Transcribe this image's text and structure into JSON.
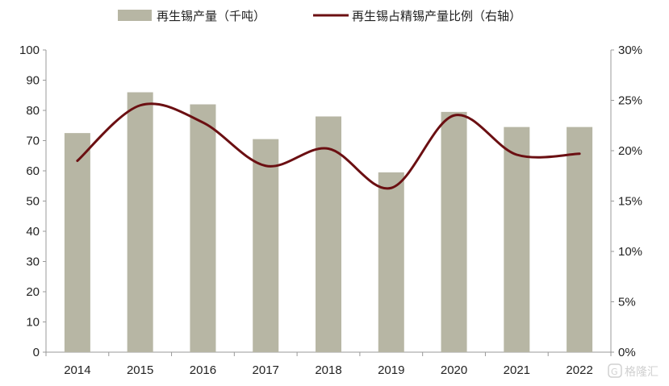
{
  "chart_data": {
    "type": "bar+line",
    "categories": [
      "2014",
      "2015",
      "2016",
      "2017",
      "2018",
      "2019",
      "2020",
      "2021",
      "2022"
    ],
    "series": [
      {
        "name": "再生锡产量（千吨）",
        "kind": "bar",
        "axis": "left",
        "color": "#b7b6a4",
        "values": [
          72.5,
          86,
          82,
          70.5,
          78,
          59.5,
          79.5,
          74.5,
          74.5
        ]
      },
      {
        "name": "再生锡占精锡产量比例（右轴）",
        "kind": "line",
        "axis": "right",
        "color": "#6b0f12",
        "values": [
          19.0,
          24.5,
          22.8,
          18.5,
          20.2,
          16.3,
          23.5,
          19.6,
          19.7
        ]
      }
    ],
    "y_left": {
      "ylim": [
        0,
        100
      ],
      "ticks": [
        0,
        10,
        20,
        30,
        40,
        50,
        60,
        70,
        80,
        90,
        100
      ],
      "tick_labels": [
        "0",
        "10",
        "20",
        "30",
        "40",
        "50",
        "60",
        "70",
        "80",
        "90",
        "100"
      ]
    },
    "y_right": {
      "ylim": [
        0,
        30
      ],
      "ticks": [
        0,
        5,
        10,
        15,
        20,
        25,
        30
      ],
      "tick_labels": [
        "0%",
        "5%",
        "10%",
        "15%",
        "20%",
        "25%",
        "30%"
      ]
    },
    "grid": false,
    "legend_position": "top"
  },
  "watermark": {
    "text": "格隆汇"
  }
}
